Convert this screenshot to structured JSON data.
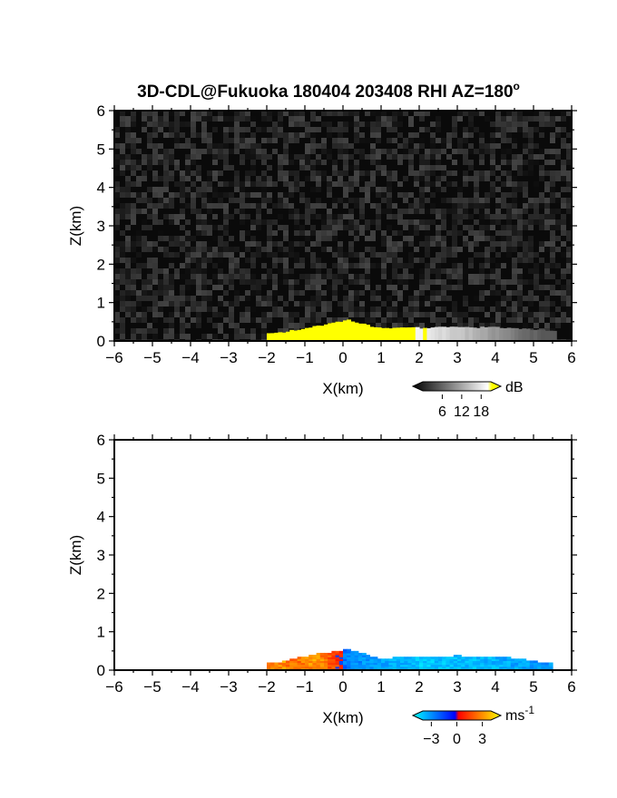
{
  "chart_data": [
    {
      "type": "heatmap",
      "title": "3D-CDL@Fukuoka 180404 203408 RHI AZ=180",
      "title_superscript": "o",
      "xlabel": "X(km)",
      "ylabel": "Z(km)",
      "xlim": [
        -6,
        6
      ],
      "ylim": [
        0,
        6
      ],
      "xticks": [
        "-6",
        "-5",
        "-4",
        "-3",
        "-2",
        "-1",
        "0",
        "1",
        "2",
        "3",
        "4",
        "5",
        "6"
      ],
      "yticks": [
        "0",
        "1",
        "2",
        "3",
        "4",
        "5",
        "6"
      ],
      "background": "noise",
      "echo": {
        "x": [
          -2.0,
          -1.5,
          -1.0,
          -0.5,
          -0.1,
          0.1,
          0.5,
          1.0,
          1.5,
          2.0,
          2.5,
          3.0,
          3.5,
          4.0,
          4.5,
          5.0,
          5.5
        ],
        "top_km": [
          0.2,
          0.24,
          0.33,
          0.42,
          0.5,
          0.55,
          0.45,
          0.32,
          0.36,
          0.34,
          0.36,
          0.37,
          0.35,
          0.36,
          0.34,
          0.3,
          0.26
        ],
        "snr_db": [
          20,
          20,
          20,
          20,
          20,
          20,
          20,
          20,
          20,
          19,
          16,
          14,
          12,
          9,
          6,
          4,
          2
        ]
      },
      "colorbar": {
        "label": "dB",
        "ticks": [
          "6",
          "12",
          "18"
        ],
        "range": [
          0,
          21
        ],
        "colors": [
          "#000000",
          "#ffffff",
          "#ffff00"
        ]
      }
    },
    {
      "type": "heatmap",
      "xlabel": "X(km)",
      "ylabel": "Z(km)",
      "xlim": [
        -6,
        6
      ],
      "ylim": [
        0,
        6
      ],
      "xticks": [
        "-6",
        "-5",
        "-4",
        "-3",
        "-2",
        "-1",
        "0",
        "1",
        "2",
        "3",
        "4",
        "5",
        "6"
      ],
      "yticks": [
        "0",
        "1",
        "2",
        "3",
        "4",
        "5",
        "6"
      ],
      "echo": {
        "x": [
          -2.0,
          -1.6,
          -1.3,
          -1.0,
          -0.7,
          -0.4,
          -0.1,
          0.1,
          0.5,
          1.0,
          1.5,
          2.0,
          2.5,
          3.0,
          3.5,
          4.0,
          4.5,
          5.0,
          5.4
        ],
        "top_km": [
          0.18,
          0.22,
          0.3,
          0.36,
          0.42,
          0.46,
          0.5,
          0.54,
          0.45,
          0.3,
          0.34,
          0.36,
          0.36,
          0.38,
          0.36,
          0.34,
          0.32,
          0.24,
          0.18
        ],
        "velocity_ms": [
          1.8,
          2.3,
          1.5,
          2.0,
          2.5,
          1.5,
          0.5,
          -1.8,
          -2.0,
          -2.3,
          -2.8,
          -3.2,
          -3.2,
          -3.0,
          -3.0,
          -2.8,
          -2.6,
          -2.2,
          -2.0
        ]
      },
      "colorbar": {
        "label": "ms",
        "label_superscript": "-1",
        "ticks": [
          "-3",
          "0",
          "3"
        ],
        "range": [
          -4,
          4
        ],
        "colors": [
          "#00ffff",
          "#0000ff",
          "#ff0000",
          "#ffff00"
        ]
      }
    }
  ]
}
